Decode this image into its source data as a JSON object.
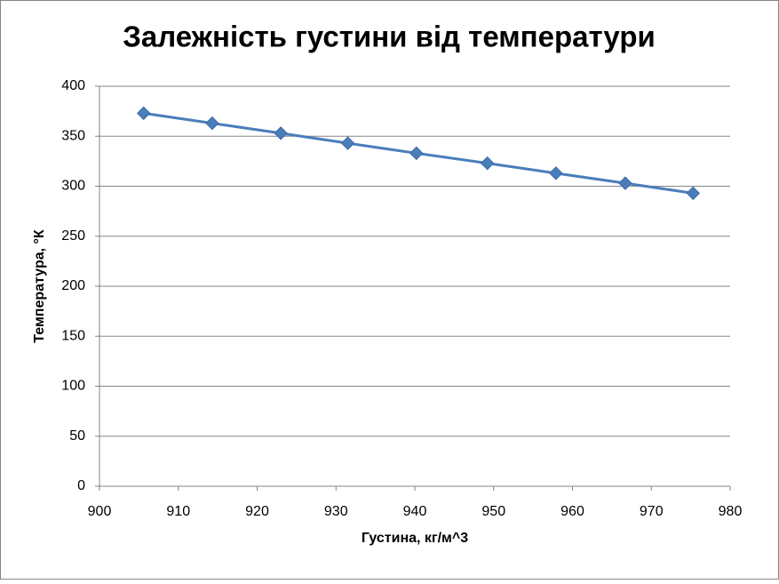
{
  "chart_data": {
    "type": "line",
    "title": "Залежність  густини від температури",
    "xlabel": "Густина, кг/м^3",
    "ylabel": "Температура, °К",
    "x": [
      905.6,
      914.3,
      923,
      931.5,
      940.2,
      949.2,
      957.9,
      966.7,
      975.3
    ],
    "values": [
      373,
      363,
      353,
      343,
      333,
      323,
      313,
      303,
      293
    ],
    "color": "#4a7ebb",
    "marker": "diamond",
    "xlim": [
      900,
      980
    ],
    "xticks": [
      900,
      910,
      920,
      930,
      940,
      950,
      960,
      970,
      980
    ],
    "ylim": [
      0,
      400
    ],
    "yticks": [
      0,
      50,
      100,
      150,
      200,
      250,
      300,
      350,
      400
    ],
    "grid": true
  }
}
